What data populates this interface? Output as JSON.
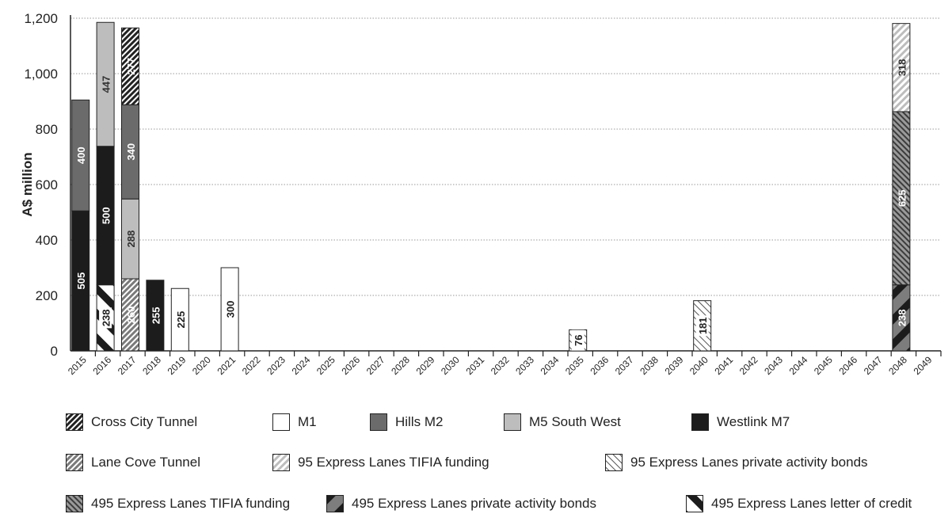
{
  "chart_data": {
    "type": "bar",
    "stacked": true,
    "ylabel": "A$ million",
    "xlabel": "",
    "ylim": [
      0,
      1200
    ],
    "yticks": [
      0,
      200,
      400,
      600,
      800,
      1000,
      1200
    ],
    "ytick_labels": [
      "0",
      "200",
      "400",
      "600",
      "800",
      "1,000",
      "1,200"
    ],
    "grid": "horizontal dotted",
    "legend_position": "bottom",
    "categories": [
      "2015",
      "2016",
      "2017",
      "2018",
      "2019",
      "2020",
      "2021",
      "2022",
      "2023",
      "2024",
      "2025",
      "2026",
      "2027",
      "2028",
      "2029",
      "2030",
      "2031",
      "2032",
      "2033",
      "2034",
      "2035",
      "2036",
      "2037",
      "2038",
      "2039",
      "2040",
      "2041",
      "2042",
      "2043",
      "2044",
      "2045",
      "2046",
      "2047",
      "2048",
      "2049"
    ],
    "series": [
      {
        "name": "Cross City Tunnel",
        "pattern": "diag-dense-dark",
        "values": {
          "2017": 277
        }
      },
      {
        "name": "M1",
        "pattern": "white",
        "values": {
          "2019": 225,
          "2021": 300
        }
      },
      {
        "name": "Hills M2",
        "pattern": "dark-gray",
        "values": {
          "2015": 400,
          "2017": 340
        }
      },
      {
        "name": "M5 South West",
        "pattern": "light-gray",
        "values": {
          "2016": 447,
          "2017": 288
        }
      },
      {
        "name": "Westlink M7",
        "pattern": "black",
        "values": {
          "2015": 505,
          "2016": 500,
          "2018": 255
        }
      },
      {
        "name": "Lane Cove Tunnel",
        "pattern": "diag-gray",
        "values": {
          "2017": 260
        }
      },
      {
        "name": "95 Express Lanes TIFIA funding",
        "pattern": "diag-light",
        "values": {
          "2048": 318
        }
      },
      {
        "name": "95 Express Lanes private activity bonds",
        "pattern": "diag-sparse",
        "values": {
          "2035": 76,
          "2040": 181
        }
      },
      {
        "name": "495 Express Lanes TIFIA funding",
        "pattern": "diag-dark-gray",
        "values": {
          "2048": 625
        }
      },
      {
        "name": "495 Express Lanes private activity bonds",
        "pattern": "bold-diag-gray",
        "values": {
          "2048": 238
        }
      },
      {
        "name": "495 Express Lanes letter of credit",
        "pattern": "bold-diag-white",
        "values": {
          "2016": 238
        }
      }
    ],
    "stack_order": {
      "2015": [
        "Westlink M7",
        "Hills M2"
      ],
      "2016": [
        "495 Express Lanes letter of credit",
        "Westlink M7",
        "M5 South West"
      ],
      "2017": [
        "Lane Cove Tunnel",
        "M5 South West",
        "Hills M2",
        "Cross City Tunnel"
      ],
      "2018": [
        "Westlink M7"
      ],
      "2019": [
        "M1"
      ],
      "2021": [
        "M1"
      ],
      "2035": [
        "95 Express Lanes private activity bonds"
      ],
      "2040": [
        "95 Express Lanes private activity bonds"
      ],
      "2048": [
        "495 Express Lanes private activity bonds",
        "495 Express Lanes TIFIA funding",
        "95 Express Lanes TIFIA funding"
      ]
    }
  }
}
